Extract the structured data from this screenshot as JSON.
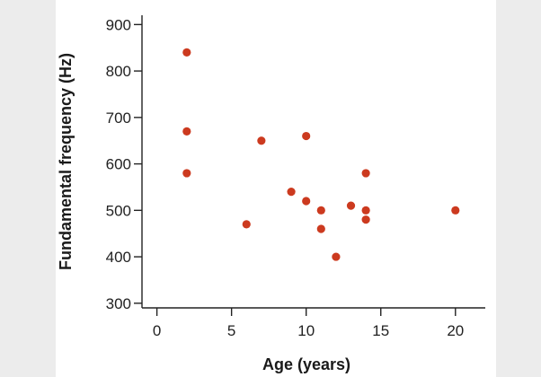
{
  "chart_data": {
    "type": "scatter",
    "title": "",
    "xlabel": "Age (years)",
    "ylabel": "Fundamental frequency (Hz)",
    "xlim": [
      -1,
      22
    ],
    "ylim": [
      290,
      920
    ],
    "xticks": [
      0,
      5,
      10,
      15,
      20
    ],
    "yticks": [
      300,
      400,
      500,
      600,
      700,
      800,
      900
    ],
    "grid": false,
    "legend": "none",
    "point_color": "#cc3a1f",
    "series": [
      {
        "x": [
          2,
          2,
          2,
          6,
          7,
          9,
          10,
          10,
          11,
          11,
          12,
          13,
          14,
          14,
          14,
          20
        ],
        "y": [
          840,
          670,
          580,
          470,
          650,
          540,
          660,
          520,
          500,
          460,
          400,
          510,
          580,
          500,
          480,
          500
        ]
      }
    ]
  }
}
